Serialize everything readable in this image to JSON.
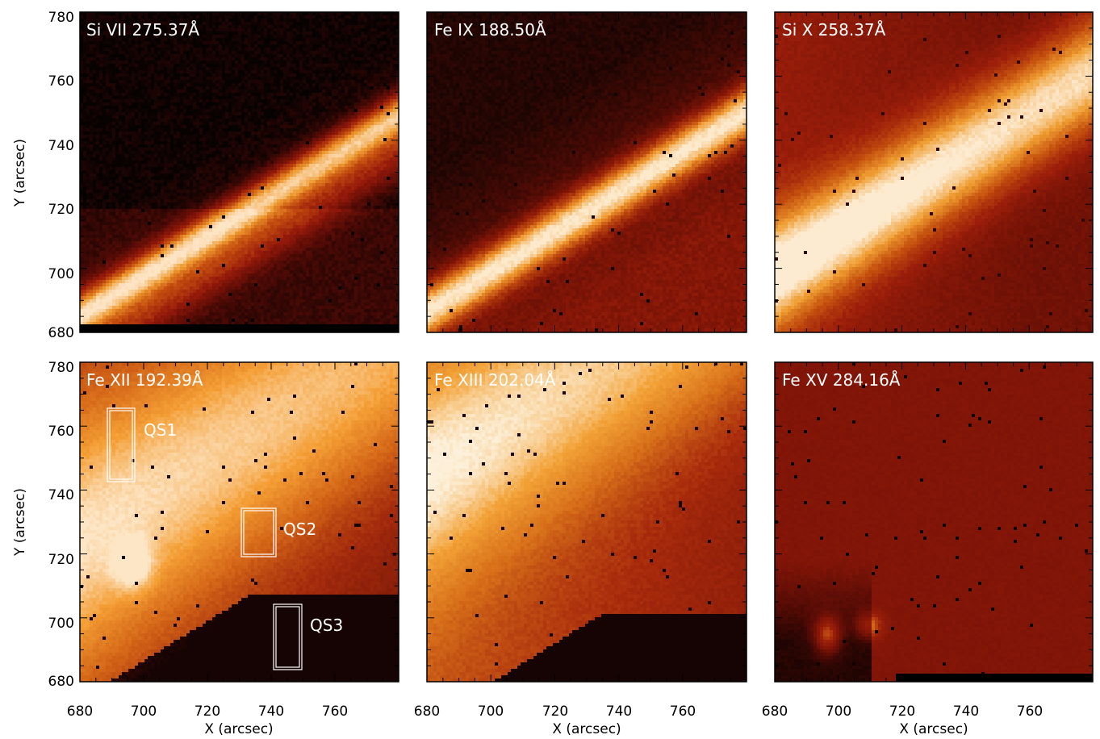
{
  "figure": {
    "x_axis_title": "X (arcsec)",
    "y_axis_title": "Y (arcsec)",
    "x_ticks": [
      "680",
      "700",
      "720",
      "740",
      "760"
    ],
    "y_ticks": [
      "780",
      "760",
      "740",
      "720",
      "700",
      "680"
    ]
  },
  "panels": [
    {
      "title": "Si VII 275.37Å",
      "background": "#070202",
      "palette": [
        "#070202",
        "#5a0c06",
        "#961a0a",
        "#c6500f",
        "#ee9a2e",
        "#fde4c4"
      ]
    },
    {
      "title": "Fe IX 188.50Å",
      "background": "#120403",
      "palette": [
        "#120403",
        "#4e0b05",
        "#8c1808",
        "#c04a0f",
        "#f09a2e",
        "#fde9cc"
      ]
    },
    {
      "title": "Si X 258.37Å",
      "background": "#7e1207",
      "palette": [
        "#2e0603",
        "#6c1006",
        "#9c1e0a",
        "#c6520f",
        "#ef9d31",
        "#fdebd1"
      ]
    },
    {
      "title": "Fe XII 192.39Å",
      "background": "#a92e0c",
      "palette": [
        "#150403",
        "#6a1106",
        "#a32a0c",
        "#d46617",
        "#f49e34",
        "#fde6c6"
      ]
    },
    {
      "title": "Fe XIII 202.04Å",
      "background": "#b84010",
      "palette": [
        "#150403",
        "#700f06",
        "#a82a0c",
        "#d8701a",
        "#f3a237",
        "#fdf0da"
      ]
    },
    {
      "title": "Fe XV 284.16Å",
      "background": "#7a1507",
      "palette": [
        "#0f0302",
        "#4e0a05",
        "#7e1407",
        "#9c1f0a",
        "#d76a18",
        "#fef6ea"
      ]
    }
  ],
  "regions": [
    {
      "label": "QS1"
    },
    {
      "label": "QS2"
    },
    {
      "label": "QS3"
    }
  ]
}
